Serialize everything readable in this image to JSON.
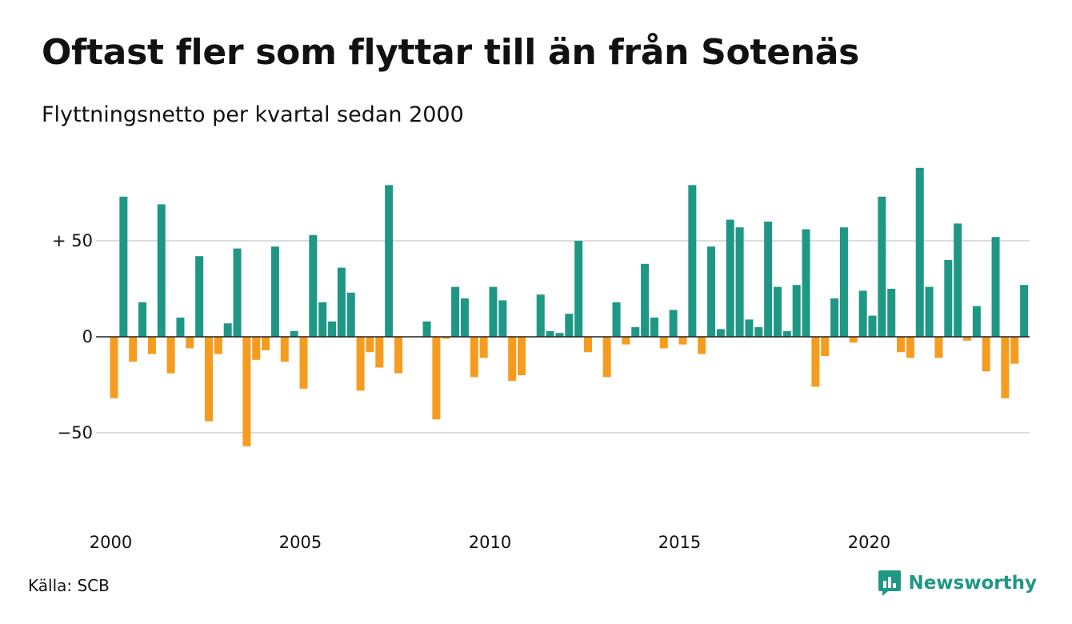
{
  "title": "Oftast fler som flyttar till än från Sotenäs",
  "subtitle": "Flyttningsnetto per kvartal sedan 2000",
  "source": "Källa: SCB",
  "brand": {
    "name": "Newsworthy",
    "logo_icon": "bar-chart-speech-bubble-icon"
  },
  "colors": {
    "positive": "#1f9785",
    "negative": "#f59c1f",
    "grid": "#dddddd",
    "text": "#111111"
  },
  "chart_data": {
    "type": "bar",
    "title": "Oftast fler som flyttar till än från Sotenäs",
    "subtitle": "Flyttningsnetto per kvartal sedan 2000",
    "xlabel": "",
    "ylabel": "",
    "ylim": [
      -80,
      90
    ],
    "grid": true,
    "legend": "none",
    "y_ticks": [
      {
        "value": 50,
        "label": "+ 50"
      },
      {
        "value": 0,
        "label": "0"
      },
      {
        "value": -50,
        "label": "−50"
      }
    ],
    "x_ticks": [
      {
        "value": 2000,
        "label": "2000"
      },
      {
        "value": 2005,
        "label": "2005"
      },
      {
        "value": 2010,
        "label": "2010"
      },
      {
        "value": 2015,
        "label": "2015"
      },
      {
        "value": 2020,
        "label": "2020"
      }
    ],
    "start_year": 2000,
    "quarters_per_year": 4,
    "values": [
      -32,
      73,
      -13,
      18,
      -9,
      69,
      -19,
      10,
      -6,
      42,
      -44,
      -9,
      7,
      46,
      -57,
      -12,
      -7,
      47,
      -13,
      3,
      -27,
      53,
      18,
      8,
      36,
      23,
      -28,
      -8,
      -16,
      79,
      -19,
      0,
      0,
      8,
      -43,
      -1,
      26,
      20,
      -21,
      -11,
      26,
      19,
      -23,
      -20,
      0,
      22,
      3,
      2,
      12,
      50,
      -8,
      0,
      -21,
      18,
      -4,
      5,
      38,
      10,
      -6,
      14,
      -4,
      79,
      -9,
      47,
      4,
      61,
      57,
      9,
      5,
      60,
      26,
      3,
      27,
      56,
      -26,
      -10,
      20,
      57,
      -3,
      24,
      11,
      73,
      25,
      -8,
      -11,
      88,
      26,
      -11,
      40,
      59,
      -2,
      16,
      -18,
      52,
      -32,
      -14,
      27
    ]
  }
}
